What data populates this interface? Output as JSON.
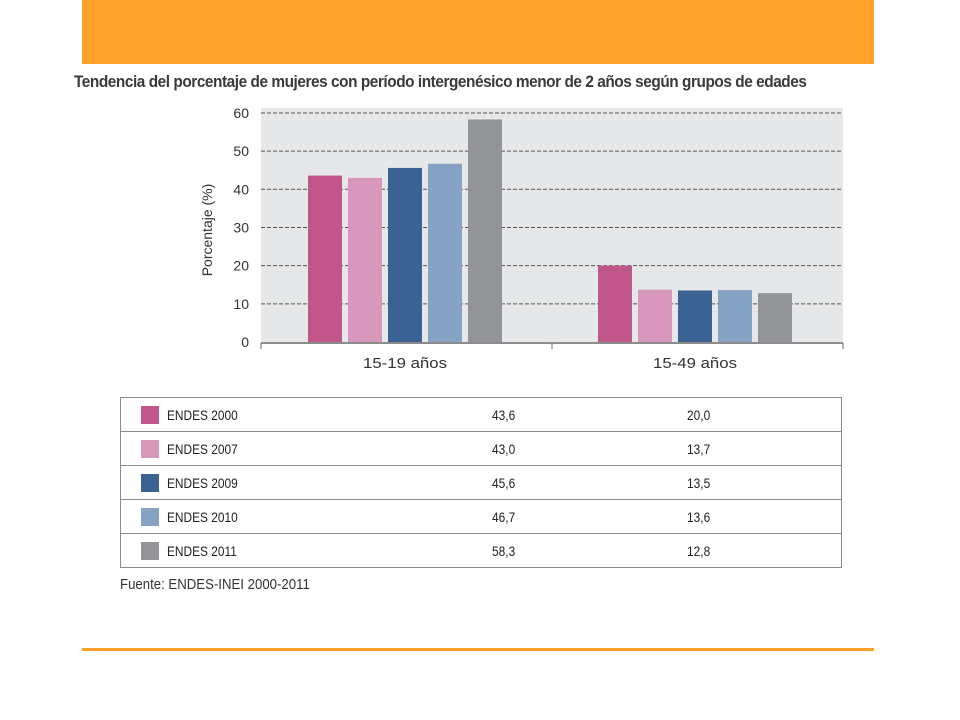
{
  "title": "Tendencia del porcentaje de mujeres con período intergenésico menor de 2 años según grupos de edades",
  "source": "Fuente: ENDES-INEI 2000-2011",
  "chart_data": {
    "type": "bar",
    "title": "Tendencia del porcentaje de mujeres con período intergenésico menor de 2 años según grupos de edades",
    "ylabel": "Porcentaje (%)",
    "xlabel": "",
    "ylim": [
      0,
      60
    ],
    "yticks": [
      0,
      10,
      20,
      30,
      40,
      50,
      60
    ],
    "grid": true,
    "categories": [
      "15-19 años",
      "15-49 años"
    ],
    "series": [
      {
        "name": "ENDES 2000",
        "color": "#c0568a",
        "values": [
          43.6,
          20.0
        ],
        "labels": [
          "43,6",
          "20,0"
        ]
      },
      {
        "name": "ENDES 2007",
        "color": "#d898bb",
        "values": [
          43.0,
          13.7
        ],
        "labels": [
          "43,0",
          "13,7"
        ]
      },
      {
        "name": "ENDES 2009",
        "color": "#3a6394",
        "values": [
          45.6,
          13.5
        ],
        "labels": [
          "45,6",
          "13,5"
        ]
      },
      {
        "name": "ENDES 2010",
        "color": "#86a2c4",
        "values": [
          46.7,
          13.6
        ],
        "labels": [
          "46,7",
          "13,6"
        ]
      },
      {
        "name": "ENDES 2011",
        "color": "#939498",
        "values": [
          58.3,
          12.8
        ],
        "labels": [
          "58,3",
          "12,8"
        ]
      }
    ]
  },
  "colors": {
    "accent": "#ffa12a",
    "plot_background": "#e6e7e8"
  }
}
